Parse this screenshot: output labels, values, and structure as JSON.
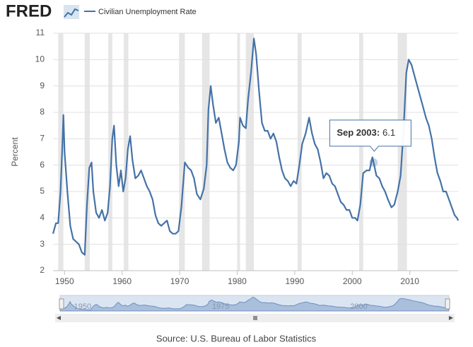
{
  "logo": "FRED",
  "chart_data": {
    "type": "line",
    "title": "Civilian Unemployment Rate",
    "ylabel": "Percent",
    "source": "Source: U.S. Bureau of Labor Statistics",
    "xlim": [
      1948,
      2018.4
    ],
    "ylim": [
      2,
      11
    ],
    "xticks": [
      1950,
      1960,
      1970,
      1980,
      1990,
      2000,
      2010
    ],
    "yticks": [
      2,
      3,
      4,
      5,
      6,
      7,
      8,
      9,
      10,
      11
    ],
    "grid": true,
    "recessions": [
      [
        1948.9,
        1949.8
      ],
      [
        1953.5,
        1954.4
      ],
      [
        1957.6,
        1958.3
      ],
      [
        1960.3,
        1961.1
      ],
      [
        1969.9,
        1970.9
      ],
      [
        1973.9,
        1975.2
      ],
      [
        1980.0,
        1980.5
      ],
      [
        1981.5,
        1982.9
      ],
      [
        1990.5,
        1991.2
      ],
      [
        2001.2,
        2001.9
      ],
      [
        2007.9,
        2009.5
      ]
    ],
    "series": [
      {
        "name": "Civilian Unemployment Rate",
        "color": "#4572a7",
        "x": [
          1948.0,
          1948.5,
          1948.9,
          1949.3,
          1949.6,
          1949.8,
          1950.0,
          1950.5,
          1951.0,
          1951.5,
          1952.0,
          1952.5,
          1953.0,
          1953.5,
          1953.9,
          1954.3,
          1954.7,
          1955.0,
          1955.5,
          1956.0,
          1956.5,
          1957.0,
          1957.5,
          1957.9,
          1958.3,
          1958.6,
          1959.0,
          1959.4,
          1959.8,
          1960.2,
          1960.6,
          1961.0,
          1961.4,
          1961.8,
          1962.3,
          1962.8,
          1963.3,
          1963.8,
          1964.3,
          1964.8,
          1965.3,
          1965.8,
          1966.3,
          1966.8,
          1967.3,
          1967.8,
          1968.3,
          1968.8,
          1969.3,
          1969.8,
          1970.3,
          1970.9,
          1971.5,
          1972.0,
          1972.5,
          1973.0,
          1973.6,
          1974.2,
          1974.7,
          1975.0,
          1975.4,
          1975.8,
          1976.3,
          1976.8,
          1977.3,
          1977.8,
          1978.3,
          1978.8,
          1979.3,
          1979.8,
          1980.3,
          1980.5,
          1981.0,
          1981.5,
          1981.9,
          1982.4,
          1982.9,
          1983.3,
          1983.8,
          1984.3,
          1984.8,
          1985.3,
          1985.8,
          1986.3,
          1986.8,
          1987.3,
          1987.8,
          1988.3,
          1988.8,
          1989.3,
          1989.8,
          1990.3,
          1990.8,
          1991.3,
          1991.9,
          1992.5,
          1993.0,
          1993.5,
          1994.0,
          1994.5,
          1995.0,
          1995.5,
          1996.0,
          1996.5,
          1997.0,
          1997.5,
          1998.0,
          1998.5,
          1999.0,
          1999.5,
          2000.0,
          2000.5,
          2000.9,
          2001.4,
          2001.9,
          2002.5,
          2003.0,
          2003.5,
          2003.7,
          2004.2,
          2004.7,
          2005.2,
          2005.7,
          2006.2,
          2006.8,
          2007.3,
          2007.9,
          2008.4,
          2008.9,
          2009.4,
          2009.8,
          2010.3,
          2010.8,
          2011.3,
          2011.8,
          2012.3,
          2012.8,
          2013.3,
          2013.8,
          2014.3,
          2014.8,
          2015.3,
          2015.8,
          2016.3,
          2016.8,
          2017.3,
          2017.8,
          2018.2,
          2018.4
        ],
        "values": [
          3.4,
          3.8,
          3.8,
          5.0,
          6.6,
          7.9,
          6.5,
          5.0,
          3.7,
          3.2,
          3.1,
          3.0,
          2.7,
          2.6,
          4.5,
          5.9,
          6.1,
          5.0,
          4.2,
          4.0,
          4.3,
          3.9,
          4.2,
          5.2,
          7.0,
          7.5,
          6.0,
          5.2,
          5.8,
          5.0,
          5.5,
          6.6,
          7.1,
          6.2,
          5.5,
          5.6,
          5.8,
          5.5,
          5.2,
          5.0,
          4.7,
          4.1,
          3.8,
          3.7,
          3.8,
          3.9,
          3.5,
          3.4,
          3.4,
          3.5,
          4.4,
          6.1,
          5.9,
          5.8,
          5.5,
          4.9,
          4.7,
          5.1,
          6.0,
          8.1,
          9.0,
          8.3,
          7.6,
          7.8,
          7.2,
          6.6,
          6.1,
          5.9,
          5.8,
          6.0,
          6.9,
          7.8,
          7.5,
          7.4,
          8.5,
          9.5,
          10.8,
          10.2,
          8.8,
          7.6,
          7.3,
          7.3,
          7.0,
          7.2,
          6.9,
          6.3,
          5.8,
          5.5,
          5.4,
          5.2,
          5.4,
          5.3,
          6.0,
          6.8,
          7.2,
          7.8,
          7.2,
          6.8,
          6.6,
          6.1,
          5.5,
          5.7,
          5.6,
          5.3,
          5.2,
          4.9,
          4.6,
          4.5,
          4.3,
          4.3,
          4.0,
          4.0,
          3.9,
          4.5,
          5.7,
          5.8,
          5.8,
          6.3,
          6.1,
          5.6,
          5.5,
          5.2,
          5.0,
          4.7,
          4.4,
          4.5,
          5.0,
          5.6,
          7.3,
          9.5,
          10.0,
          9.8,
          9.4,
          9.0,
          8.6,
          8.2,
          7.8,
          7.5,
          7.0,
          6.3,
          5.7,
          5.4,
          5.0,
          5.0,
          4.7,
          4.4,
          4.1,
          4.0,
          3.9
        ]
      }
    ],
    "tooltip": {
      "label": "Sep 2003:",
      "x": 2003.7,
      "value": 6.1
    },
    "navigator": {
      "labels": [
        1950,
        1975,
        2000
      ]
    }
  }
}
